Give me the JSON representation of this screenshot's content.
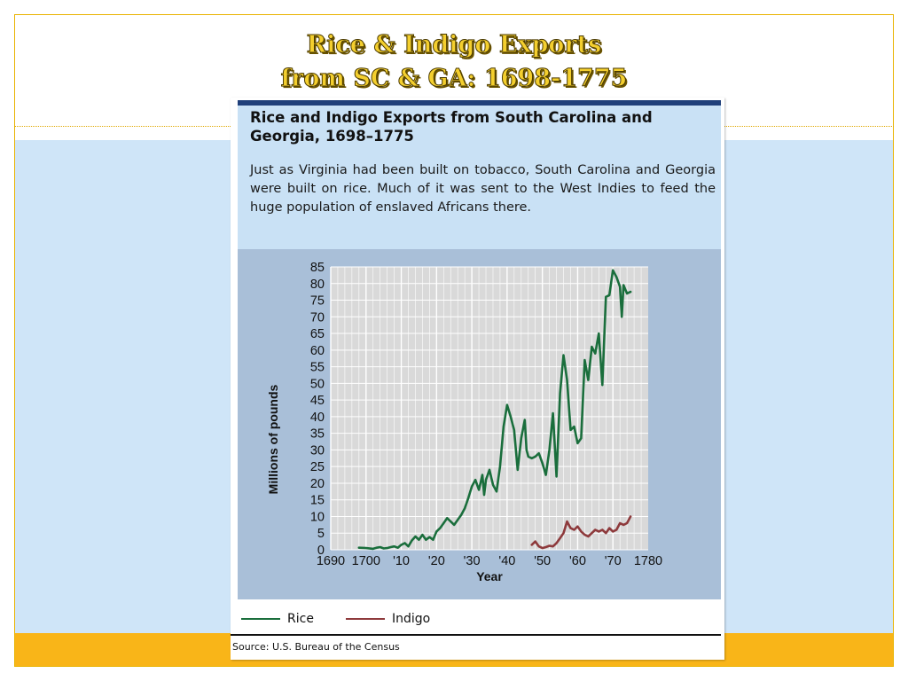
{
  "slide": {
    "title_line1": "Rice & Indigo Exports",
    "title_line2": "from SC & GA:  1698-1775"
  },
  "figure": {
    "title": "Rice and Indigo Exports from South Carolina and Georgia, 1698–1775",
    "description": "Just as Virginia had been built on tobacco, South Carolina and Georgia were built on rice. Much of it was sent to the West Indies to feed the huge population of enslaved Africans there.",
    "source": "Source: U.S. Bureau of the Census"
  },
  "colors": {
    "rice": "#1a6e3c",
    "indigo": "#8e3a3c",
    "plot_bg": "#d9d9d9",
    "panel_bg": "#a9bfd8",
    "title_fill": "#f4cf2e"
  },
  "chart_data": {
    "type": "line",
    "xlabel": "Year",
    "ylabel": "Millions of pounds",
    "xlim": [
      1690,
      1780
    ],
    "ylim": [
      0,
      85
    ],
    "x_ticks": [
      1690,
      1700,
      1710,
      1720,
      1730,
      1740,
      1750,
      1760,
      1770,
      1780
    ],
    "x_tick_labels": [
      "1690",
      "1700",
      "'10",
      "'20",
      "'30",
      "'40",
      "'50",
      "'60",
      "'70",
      "1780"
    ],
    "y_ticks": [
      0,
      5,
      10,
      15,
      20,
      25,
      30,
      35,
      40,
      45,
      50,
      55,
      60,
      65,
      70,
      75,
      80,
      85
    ],
    "grid": true,
    "legend_position": "bottom",
    "series": [
      {
        "name": "Rice",
        "color": "#1a6e3c",
        "points": [
          [
            1698,
            0.6
          ],
          [
            1700,
            0.5
          ],
          [
            1702,
            0.3
          ],
          [
            1703,
            0.6
          ],
          [
            1704,
            0.8
          ],
          [
            1705,
            0.4
          ],
          [
            1706,
            0.5
          ],
          [
            1707,
            0.8
          ],
          [
            1708,
            1.0
          ],
          [
            1709,
            0.6
          ],
          [
            1710,
            1.5
          ],
          [
            1711,
            2.0
          ],
          [
            1712,
            1.0
          ],
          [
            1713,
            2.8
          ],
          [
            1714,
            4.0
          ],
          [
            1715,
            3.0
          ],
          [
            1716,
            4.5
          ],
          [
            1717,
            3.0
          ],
          [
            1718,
            3.8
          ],
          [
            1719,
            3.0
          ],
          [
            1720,
            5.5
          ],
          [
            1721,
            6.5
          ],
          [
            1722,
            8.0
          ],
          [
            1723,
            9.5
          ],
          [
            1724,
            8.5
          ],
          [
            1725,
            7.5
          ],
          [
            1726,
            9.0
          ],
          [
            1727,
            10.5
          ],
          [
            1728,
            12.5
          ],
          [
            1729,
            15.5
          ],
          [
            1730,
            19.0
          ],
          [
            1731,
            21.0
          ],
          [
            1732,
            18.0
          ],
          [
            1733,
            22.5
          ],
          [
            1733.5,
            16.5
          ],
          [
            1734,
            21.0
          ],
          [
            1735,
            24.0
          ],
          [
            1736,
            19.5
          ],
          [
            1737,
            17.5
          ],
          [
            1738,
            25.0
          ],
          [
            1739,
            37.0
          ],
          [
            1740,
            43.5
          ],
          [
            1741,
            40.0
          ],
          [
            1742,
            36.0
          ],
          [
            1743,
            24.0
          ],
          [
            1744,
            33.5
          ],
          [
            1745,
            39.0
          ],
          [
            1745.5,
            30.0
          ],
          [
            1746,
            28.0
          ],
          [
            1747,
            27.5
          ],
          [
            1748,
            28.0
          ],
          [
            1749,
            29.0
          ],
          [
            1750,
            26.0
          ],
          [
            1751,
            22.5
          ],
          [
            1752,
            30.0
          ],
          [
            1753,
            41.0
          ],
          [
            1754,
            22.0
          ],
          [
            1755,
            47.0
          ],
          [
            1756,
            58.5
          ],
          [
            1757,
            51.0
          ],
          [
            1758,
            36.0
          ],
          [
            1759,
            37.0
          ],
          [
            1760,
            32.0
          ],
          [
            1761,
            33.5
          ],
          [
            1762,
            57.0
          ],
          [
            1763,
            51.0
          ],
          [
            1764,
            61.0
          ],
          [
            1765,
            59.0
          ],
          [
            1766,
            65.0
          ],
          [
            1767,
            49.5
          ],
          [
            1768,
            76.0
          ],
          [
            1769,
            76.5
          ],
          [
            1770,
            84.0
          ],
          [
            1771,
            82.0
          ],
          [
            1772,
            79.0
          ],
          [
            1772.5,
            70.0
          ],
          [
            1773,
            79.5
          ],
          [
            1774,
            77.0
          ],
          [
            1775,
            77.5
          ]
        ]
      },
      {
        "name": "Indigo",
        "color": "#8e3a3c",
        "points": [
          [
            1747,
            1.5
          ],
          [
            1748,
            2.5
          ],
          [
            1749,
            1.0
          ],
          [
            1750,
            0.5
          ],
          [
            1751,
            0.8
          ],
          [
            1752,
            1.2
          ],
          [
            1753,
            1.0
          ],
          [
            1754,
            2.0
          ],
          [
            1755,
            3.5
          ],
          [
            1756,
            5.0
          ],
          [
            1757,
            8.5
          ],
          [
            1758,
            6.5
          ],
          [
            1759,
            6.0
          ],
          [
            1760,
            7.0
          ],
          [
            1761,
            5.5
          ],
          [
            1762,
            4.5
          ],
          [
            1763,
            4.0
          ],
          [
            1764,
            5.0
          ],
          [
            1765,
            6.0
          ],
          [
            1766,
            5.5
          ],
          [
            1767,
            6.0
          ],
          [
            1768,
            5.0
          ],
          [
            1769,
            6.5
          ],
          [
            1770,
            5.5
          ],
          [
            1771,
            6.0
          ],
          [
            1772,
            8.0
          ],
          [
            1773,
            7.5
          ],
          [
            1774,
            8.0
          ],
          [
            1775,
            10.0
          ]
        ]
      }
    ]
  }
}
